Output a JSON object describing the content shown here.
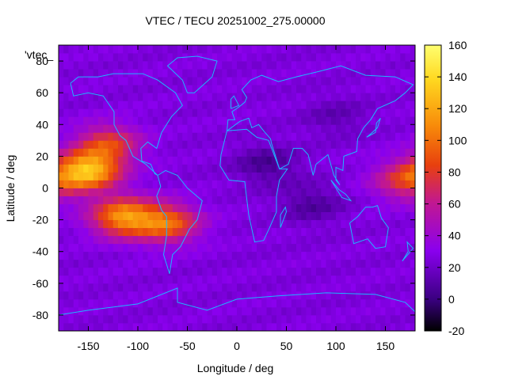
{
  "chart_data": {
    "type": "heatmap",
    "title": "VTEC / TECU 20251002_275.00000",
    "xlabel": "Longitude / deg",
    "ylabel": "Latitude / deg",
    "legend_key": "'vtec_",
    "xlim": [
      -180,
      180
    ],
    "ylim": [
      -90,
      90
    ],
    "xticks": [
      -150,
      -100,
      -50,
      0,
      50,
      100,
      150
    ],
    "yticks": [
      -80,
      -60,
      -40,
      -20,
      0,
      20,
      40,
      60,
      80
    ],
    "colorbar": {
      "range": [
        -20,
        160
      ],
      "ticks": [
        -20,
        0,
        20,
        40,
        60,
        80,
        100,
        120,
        140,
        160
      ],
      "palette": [
        "#000000",
        "#3a0080",
        "#8a00ee",
        "#c21890",
        "#e8400e",
        "#f88c0a",
        "#ffd820",
        "#ffff70"
      ]
    },
    "grid_step_deg": 5,
    "background_value": 26,
    "features": [
      {
        "name": "eastern Pacific equatorial anomaly crest (north)",
        "lon": -150,
        "lat": 11,
        "value": 125
      },
      {
        "name": "Pacific southern crest",
        "lon": -115,
        "lat": -18,
        "value": 110
      },
      {
        "name": "South American southern crest",
        "lon": -70,
        "lat": -22,
        "value": 95
      },
      {
        "name": "North American high",
        "lon": -130,
        "lat": 28,
        "value": 80
      },
      {
        "name": "western Pacific high",
        "lon": 170,
        "lat": 5,
        "value": 75
      },
      {
        "name": "Africa / Indian Ocean trough",
        "lon": 30,
        "lat": 15,
        "value": 5
      },
      {
        "name": "Indian Ocean trough",
        "lon": 75,
        "lat": -10,
        "value": 8
      },
      {
        "name": "Asian night-side low",
        "lon": 100,
        "lat": 45,
        "value": 14
      }
    ],
    "coastline_color": "#1fb6ff"
  }
}
